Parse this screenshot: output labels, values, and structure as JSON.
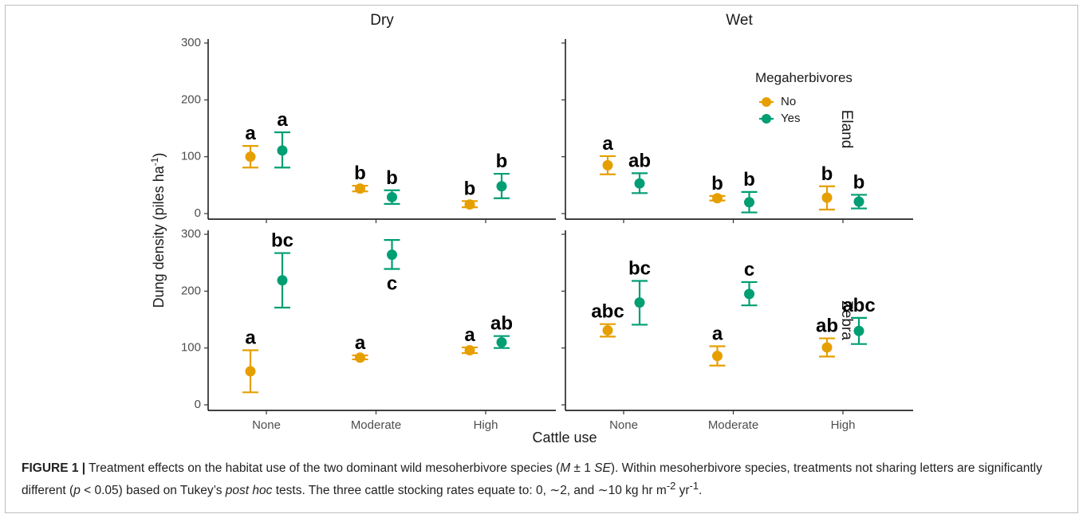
{
  "chart_data": {
    "type": "scatter",
    "subtype": "point-errorbar-faceted",
    "facet_columns": [
      "Dry",
      "Wet"
    ],
    "facet_rows": [
      "Eland",
      "Zebra"
    ],
    "xlabel": "Cattle use",
    "ylabel": "Dung density (piles ha",
    "ylabel_sup": "-1",
    "ylabel_close": ")",
    "categories": [
      "None",
      "Moderate",
      "High"
    ],
    "ylim": [
      0,
      300
    ],
    "yticks": [
      0,
      100,
      200,
      300
    ],
    "legend": {
      "title": "Megaherbivores",
      "placement": "top-right of Wet/Eland panel",
      "items": [
        {
          "name": "No",
          "color": "#E69F00"
        },
        {
          "name": "Yes",
          "color": "#009E73"
        }
      ]
    },
    "panels": [
      {
        "column": "Dry",
        "row": "Eland",
        "series": [
          {
            "name": "No",
            "points": [
              {
                "x": "None",
                "y": 100,
                "lo": 81,
                "hi": 119,
                "letter": "a"
              },
              {
                "x": "Moderate",
                "y": 44,
                "lo": 39,
                "hi": 49,
                "letter": "b"
              },
              {
                "x": "High",
                "y": 16,
                "lo": 11,
                "hi": 22,
                "letter": "b"
              }
            ]
          },
          {
            "name": "Yes",
            "points": [
              {
                "x": "None",
                "y": 111,
                "lo": 81,
                "hi": 143,
                "letter": "a"
              },
              {
                "x": "Moderate",
                "y": 29,
                "lo": 17,
                "hi": 41,
                "letter": "b"
              },
              {
                "x": "High",
                "y": 48,
                "lo": 27,
                "hi": 70,
                "letter": "b"
              }
            ]
          }
        ]
      },
      {
        "column": "Wet",
        "row": "Eland",
        "series": [
          {
            "name": "No",
            "points": [
              {
                "x": "None",
                "y": 85,
                "lo": 69,
                "hi": 101,
                "letter": "a"
              },
              {
                "x": "Moderate",
                "y": 27,
                "lo": 23,
                "hi": 31,
                "letter": "b"
              },
              {
                "x": "High",
                "y": 28,
                "lo": 7,
                "hi": 48,
                "letter": "b"
              }
            ]
          },
          {
            "name": "Yes",
            "points": [
              {
                "x": "None",
                "y": 53,
                "lo": 36,
                "hi": 71,
                "letter": "ab"
              },
              {
                "x": "Moderate",
                "y": 20,
                "lo": 2,
                "hi": 38,
                "letter": "b"
              },
              {
                "x": "High",
                "y": 21,
                "lo": 9,
                "hi": 33,
                "letter": "b"
              }
            ]
          }
        ]
      },
      {
        "column": "Dry",
        "row": "Zebra",
        "series": [
          {
            "name": "No",
            "points": [
              {
                "x": "None",
                "y": 59,
                "lo": 22,
                "hi": 96,
                "letter": "a"
              },
              {
                "x": "Moderate",
                "y": 83,
                "lo": 80,
                "hi": 87,
                "letter": "a"
              },
              {
                "x": "High",
                "y": 96,
                "lo": 91,
                "hi": 101,
                "letter": "a"
              }
            ]
          },
          {
            "name": "Yes",
            "points": [
              {
                "x": "None",
                "y": 219,
                "lo": 171,
                "hi": 267,
                "letter": "bc"
              },
              {
                "x": "Moderate",
                "y": 264,
                "lo": 239,
                "hi": 290,
                "letter": "c",
                "letter_below": true
              },
              {
                "x": "High",
                "y": 110,
                "lo": 100,
                "hi": 121,
                "letter": "ab"
              }
            ]
          }
        ]
      },
      {
        "column": "Wet",
        "row": "Zebra",
        "series": [
          {
            "name": "No",
            "points": [
              {
                "x": "None",
                "y": 131,
                "lo": 120,
                "hi": 142,
                "letter": "abc"
              },
              {
                "x": "Moderate",
                "y": 86,
                "lo": 69,
                "hi": 103,
                "letter": "a"
              },
              {
                "x": "High",
                "y": 101,
                "lo": 85,
                "hi": 117,
                "letter": "ab"
              }
            ]
          },
          {
            "name": "Yes",
            "points": [
              {
                "x": "None",
                "y": 180,
                "lo": 141,
                "hi": 218,
                "letter": "bc"
              },
              {
                "x": "Moderate",
                "y": 195,
                "lo": 175,
                "hi": 216,
                "letter": "c"
              },
              {
                "x": "High",
                "y": 130,
                "lo": 107,
                "hi": 153,
                "letter": "abc"
              }
            ]
          }
        ]
      }
    ]
  },
  "caption": {
    "label": "FIGURE 1 |",
    "t1": " Treatment effects on the habitat use of the two dominant wild mesoherbivore species (",
    "m": "M",
    "t2": " ± 1 ",
    "se": "SE",
    "t3": "). Within mesoherbivore species, treatments not sharing letters are significantly different (",
    "p": "p",
    "t4": " < 0.05) based on Tukey’s ",
    "posthoc": "post hoc",
    "t5": " tests. The three cattle stocking rates equate to: 0, ∼2, and ∼10 kg hr m",
    "sup1": "-2",
    "t6": " yr",
    "sup2": "-1",
    "t7": "."
  }
}
